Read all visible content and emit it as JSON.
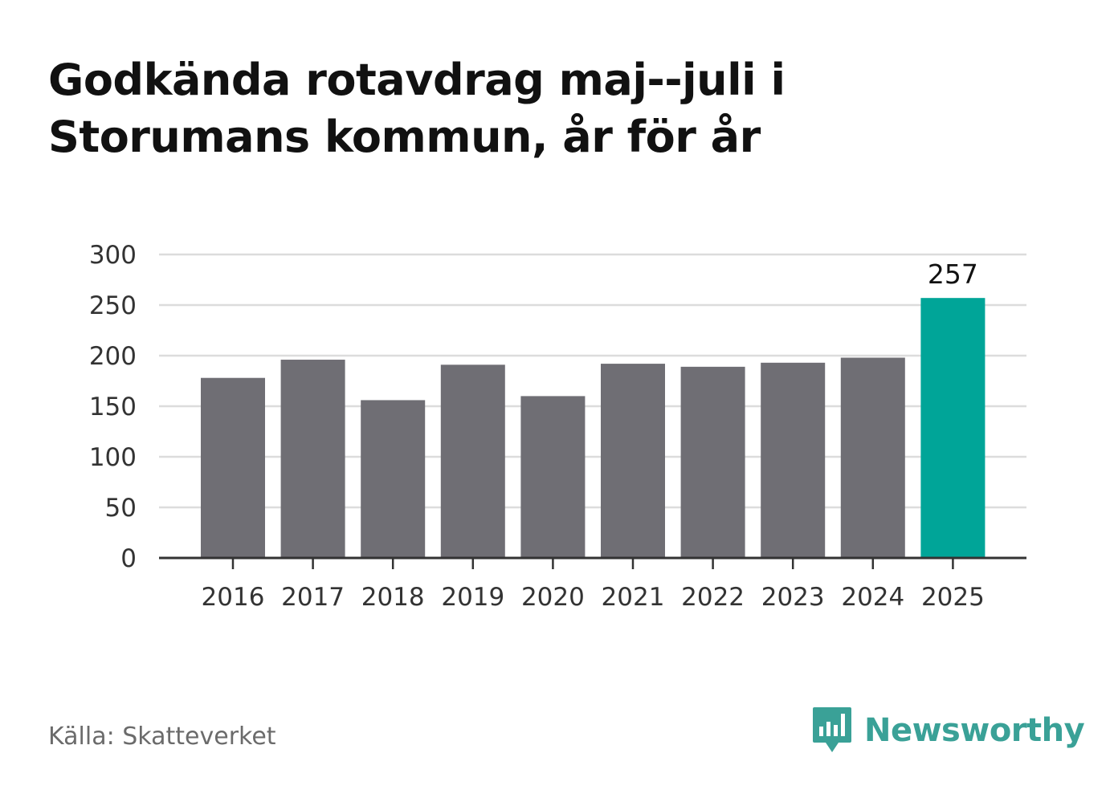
{
  "title": "Godkända rotavdrag maj--juli i Storumans kommun, år för år",
  "source": "Källa: Skatteverket",
  "brand": {
    "name": "Newsworthy",
    "icon": "newsworthy-logo-icon",
    "color": "#3aa197"
  },
  "colors": {
    "bar": "#6f6e74",
    "highlight": "#00a598",
    "grid": "#dcdcdc",
    "axis": "#333333",
    "text": "#333333"
  },
  "chart_data": {
    "type": "bar",
    "categories": [
      "2016",
      "2017",
      "2018",
      "2019",
      "2020",
      "2021",
      "2022",
      "2023",
      "2024",
      "2025"
    ],
    "values": [
      178,
      196,
      156,
      191,
      160,
      192,
      189,
      193,
      198,
      257
    ],
    "highlight_index": 9,
    "data_labels": [
      {
        "index": 9,
        "text": "257"
      }
    ],
    "y_ticks": [
      "0",
      "50",
      "100",
      "150",
      "200",
      "250",
      "300"
    ],
    "ylim": [
      0,
      300
    ],
    "grid": true,
    "legend": "none"
  }
}
